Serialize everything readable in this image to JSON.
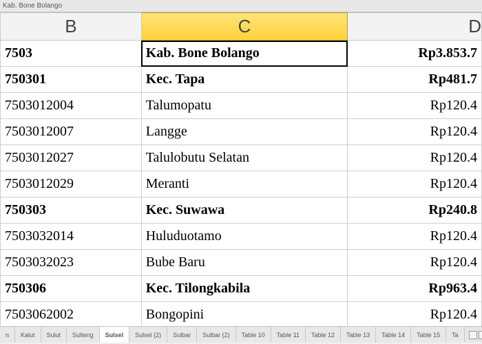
{
  "formula_bar": {
    "text": "Kab. Bone Bolango"
  },
  "columns": [
    {
      "letter": "B",
      "active": false
    },
    {
      "letter": "C",
      "active": true
    },
    {
      "letter": "D",
      "active": false
    }
  ],
  "rows": [
    {
      "b": "7503",
      "c": "Kab.  Bone  Bolango",
      "d": "Rp3.853.7",
      "bold": true,
      "selected": true
    },
    {
      "b": "750301",
      "c": "Kec.  Tapa",
      "d": "Rp481.7",
      "bold": true
    },
    {
      "b": "7503012004",
      "c": "Talumopatu",
      "d": "Rp120.4",
      "bold": false
    },
    {
      "b": "7503012007",
      "c": "Langge",
      "d": "Rp120.4",
      "bold": false
    },
    {
      "b": "7503012027",
      "c": "Talulobutu  Selatan",
      "d": "Rp120.4",
      "bold": false
    },
    {
      "b": "7503012029",
      "c": "Meranti",
      "d": "Rp120.4",
      "bold": false
    },
    {
      "b": "750303",
      "c": "Kec.  Suwawa",
      "d": "Rp240.8",
      "bold": true
    },
    {
      "b": "7503032014",
      "c": "Huluduotamo",
      "d": "Rp120.4",
      "bold": false
    },
    {
      "b": "7503032023",
      "c": "Bube  Baru",
      "d": "Rp120.4",
      "bold": false
    },
    {
      "b": "750306",
      "c": "Kec.  Tilongkabila",
      "d": "Rp963.4",
      "bold": true
    },
    {
      "b": "7503062002",
      "c": "Bongopini",
      "d": "Rp120.4",
      "bold": false
    }
  ],
  "tabs": [
    {
      "label": "n"
    },
    {
      "label": "Kalut"
    },
    {
      "label": "Sulut"
    },
    {
      "label": "Sulteng"
    },
    {
      "label": "Sulsel",
      "active": true
    },
    {
      "label": "Sulsel (2)"
    },
    {
      "label": "Sulbar"
    },
    {
      "label": "Sulbar (2)"
    },
    {
      "label": "Table 10"
    },
    {
      "label": "Table 11"
    },
    {
      "label": "Table 12"
    },
    {
      "label": "Table 13"
    },
    {
      "label": "Table 14"
    },
    {
      "label": "Table 15"
    },
    {
      "label": "Ta"
    }
  ]
}
